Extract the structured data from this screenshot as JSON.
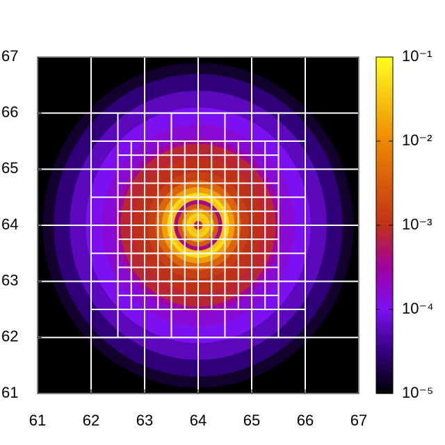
{
  "chart_data": {
    "type": "heatmap",
    "xlim": [
      61,
      67
    ],
    "ylim": [
      61,
      67
    ],
    "xticks": [
      61,
      62,
      63,
      64,
      65,
      66,
      67
    ],
    "yticks": [
      61,
      62,
      63,
      64,
      65,
      66,
      67
    ],
    "center": [
      64,
      64
    ],
    "radial_profile": {
      "r": [
        3.05,
        2.9,
        2.7,
        2.4,
        2.1,
        1.8,
        1.55,
        1.45,
        1.2,
        0.95,
        0.8,
        0.68,
        0.58,
        0.52,
        0.45,
        0.38,
        0.3,
        0.22,
        0.15,
        0.08,
        0
      ],
      "values": [
        1e-05,
        1.5e-05,
        3e-05,
        6e-05,
        0.0001,
        0.00015,
        0.0003,
        0.0008,
        0.001,
        0.0015,
        0.004,
        0.015,
        0.05,
        0.03,
        0.0004,
        0.003,
        0.015,
        0.04,
        0.03,
        0.0008,
        0.00015
      ]
    },
    "colorbar": {
      "log_scale": true,
      "lim": [
        1e-05,
        0.1
      ],
      "ticks": [
        {
          "value": 0.1,
          "label": "10⁻¹"
        },
        {
          "value": 0.01,
          "label": "10⁻²"
        },
        {
          "value": 0.001,
          "label": "10⁻³"
        },
        {
          "value": 0.0001,
          "label": "10⁻⁴"
        },
        {
          "value": 1e-05,
          "label": "10⁻⁵"
        }
      ]
    },
    "colormap": [
      [
        0,
        "#000000"
      ],
      [
        0.12,
        "#30007a"
      ],
      [
        0.25,
        "#7d10f0"
      ],
      [
        0.375,
        "#a000a0"
      ],
      [
        0.5,
        "#c03018"
      ],
      [
        0.75,
        "#ee8800"
      ],
      [
        1,
        "#ffff20"
      ]
    ],
    "mesh": [
      {
        "lim": [
          61,
          67
        ],
        "step": 1
      },
      {
        "lim": [
          62,
          66
        ],
        "step": 0.5
      },
      {
        "lim": [
          62.5,
          65.5
        ],
        "step": 0.25
      }
    ],
    "mesh_color": "#ffffff"
  }
}
